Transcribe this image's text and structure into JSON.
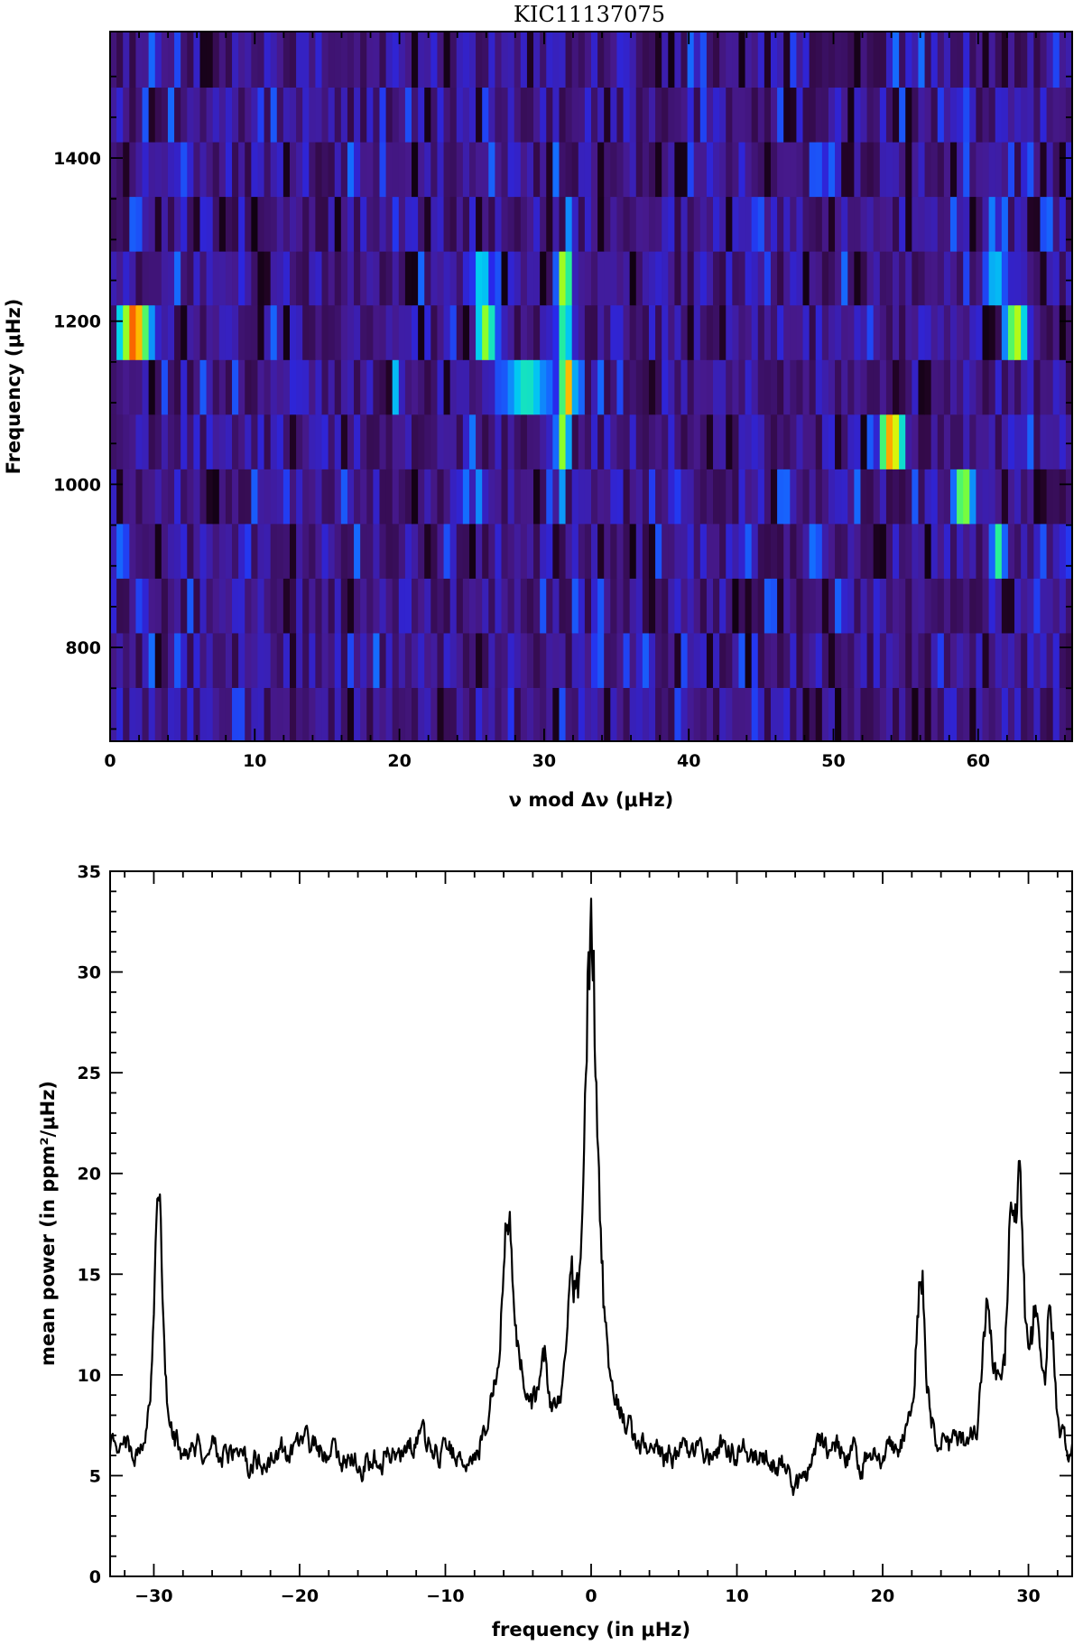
{
  "chart_data": [
    {
      "type": "heatmap",
      "title": "KIC11137075",
      "xlabel": "ν mod Δν (μHz)",
      "ylabel": "Frequency (μHz)",
      "xlim": [
        0,
        66.5
      ],
      "ylim": [
        685,
        1555
      ],
      "x_ticks": [
        0,
        10,
        20,
        30,
        40,
        50,
        60
      ],
      "y_ticks": [
        800,
        1000,
        1200,
        1400
      ],
      "row_starts": [
        685,
        751,
        818,
        885,
        952,
        1019,
        1086,
        1153,
        1220,
        1286,
        1353,
        1420,
        1487
      ],
      "row_height": 67,
      "hot_spots": [
        {
          "x": 1.7,
          "y": 1186,
          "w": 1.2,
          "level": 1.0
        },
        {
          "x": 0.8,
          "y": 918,
          "w": 0.8,
          "level": 0.45
        },
        {
          "x": 9.0,
          "y": 1253,
          "w": 0.4,
          "level": 0.35
        },
        {
          "x": 19.8,
          "y": 1119,
          "w": 0.4,
          "level": 0.55
        },
        {
          "x": 25.7,
          "y": 1253,
          "w": 0.8,
          "level": 0.6
        },
        {
          "x": 26.0,
          "y": 1186,
          "w": 0.9,
          "level": 0.75
        },
        {
          "x": 25.0,
          "y": 1052,
          "w": 0.5,
          "level": 0.45
        },
        {
          "x": 25.5,
          "y": 985,
          "w": 0.5,
          "level": 0.45
        },
        {
          "x": 31.4,
          "y": 1253,
          "w": 0.6,
          "level": 0.85
        },
        {
          "x": 31.4,
          "y": 1186,
          "w": 0.6,
          "level": 0.7
        },
        {
          "x": 31.6,
          "y": 1119,
          "w": 0.6,
          "level": 0.95
        },
        {
          "x": 28.8,
          "y": 1119,
          "w": 2.4,
          "level": 0.6
        },
        {
          "x": 31.3,
          "y": 1052,
          "w": 0.6,
          "level": 0.75
        },
        {
          "x": 31.2,
          "y": 985,
          "w": 0.4,
          "level": 0.5
        },
        {
          "x": 31.7,
          "y": 1320,
          "w": 0.3,
          "level": 0.45
        },
        {
          "x": 32.3,
          "y": 918,
          "w": 0.3,
          "level": 0.4
        },
        {
          "x": 33.6,
          "y": 851,
          "w": 0.3,
          "level": 0.35
        },
        {
          "x": 37.0,
          "y": 784,
          "w": 0.8,
          "level": 0.4
        },
        {
          "x": 54.0,
          "y": 1052,
          "w": 1.0,
          "level": 0.95
        },
        {
          "x": 59.0,
          "y": 985,
          "w": 0.8,
          "level": 0.8
        },
        {
          "x": 62.6,
          "y": 1186,
          "w": 0.9,
          "level": 0.82
        },
        {
          "x": 61.4,
          "y": 918,
          "w": 0.7,
          "level": 0.62
        },
        {
          "x": 61.2,
          "y": 1253,
          "w": 1.1,
          "level": 0.55
        },
        {
          "x": 61.0,
          "y": 1320,
          "w": 0.6,
          "level": 0.45
        },
        {
          "x": 5.0,
          "y": 784,
          "w": 0.3,
          "level": 0.35
        },
        {
          "x": 27.8,
          "y": 718,
          "w": 0.3,
          "level": 0.4
        }
      ]
    },
    {
      "type": "line",
      "title": "",
      "xlabel": "frequency (in μHz)",
      "ylabel": "mean power (in ppm²/μHz)",
      "xlim": [
        -33,
        33
      ],
      "ylim": [
        0,
        35
      ],
      "x_ticks": [
        -30,
        -20,
        -10,
        0,
        10,
        20,
        30
      ],
      "y_ticks": [
        0,
        5,
        10,
        15,
        20,
        25,
        30,
        35
      ],
      "baseline": 6.0,
      "peaks": [
        {
          "x": -29.7,
          "height": 20.5,
          "width": 0.3
        },
        {
          "x": -5.7,
          "height": 17.3,
          "width": 0.55
        },
        {
          "x": -3.2,
          "height": 10.5,
          "width": 0.3
        },
        {
          "x": -1.4,
          "height": 11.3,
          "width": 0.3
        },
        {
          "x": 0.0,
          "height": 32.3,
          "width": 0.55
        },
        {
          "x": 22.6,
          "height": 14.9,
          "width": 0.35
        },
        {
          "x": 27.2,
          "height": 12.9,
          "width": 0.4
        },
        {
          "x": 28.8,
          "height": 15.6,
          "width": 0.3
        },
        {
          "x": 29.4,
          "height": 17.9,
          "width": 0.3
        },
        {
          "x": 30.5,
          "height": 11.7,
          "width": 0.3
        },
        {
          "x": 31.5,
          "height": 12.7,
          "width": 0.3
        }
      ]
    }
  ]
}
